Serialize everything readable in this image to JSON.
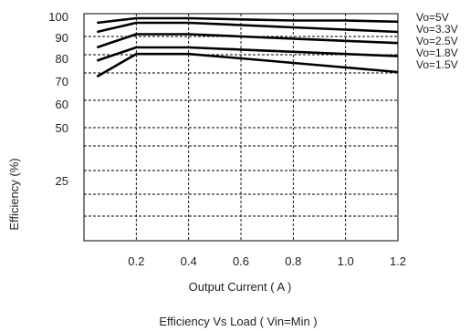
{
  "chart_data": {
    "type": "line",
    "xlabel": "Output Current ( A )",
    "ylabel": "Efficiency (%)",
    "caption": "Efficiency  Vs Load ( Vin=Min )",
    "xlim": [
      0,
      1.2
    ],
    "x_ticks": [
      0.2,
      0.4,
      0.6,
      0.8,
      1.0,
      1.2
    ],
    "x_tick_labels": [
      "0.2",
      "0.4",
      "0.6",
      "0.8",
      "1.0",
      "1.2"
    ],
    "y_scale": "nonlinear (custom efficiency scale)",
    "y_tick_labels": [
      "100",
      "90",
      "80",
      "70",
      "60",
      "50",
      "25"
    ],
    "grid": true,
    "legend_position": "right",
    "series": [
      {
        "name": "Vo=5V",
        "x": [
          0.05,
          0.2,
          0.4,
          0.6,
          0.8,
          1.0,
          1.2
        ],
        "y": [
          96,
          98,
          98,
          97.5,
          97,
          97,
          96.5
        ]
      },
      {
        "name": "Vo=3.3V",
        "x": [
          0.05,
          0.2,
          0.4,
          0.6,
          0.8,
          1.0,
          1.2
        ],
        "y": [
          92,
          96,
          96,
          95,
          94,
          93,
          92
        ]
      },
      {
        "name": "Vo=2.5V",
        "x": [
          0.05,
          0.2,
          0.4,
          0.6,
          0.8,
          1.0,
          1.2
        ],
        "y": [
          85,
          91,
          91,
          90,
          89,
          88,
          87
        ]
      },
      {
        "name": "Vo=1.8V",
        "x": [
          0.05,
          0.2,
          0.4,
          0.6,
          0.8,
          1.0,
          1.2
        ],
        "y": [
          79,
          85,
          85,
          84,
          83,
          82,
          81
        ]
      },
      {
        "name": "Vo=1.5V",
        "x": [
          0.05,
          0.2,
          0.4,
          0.6,
          0.8,
          1.0,
          1.2
        ],
        "y": [
          72,
          82,
          82,
          80,
          78,
          76,
          74
        ]
      }
    ]
  }
}
